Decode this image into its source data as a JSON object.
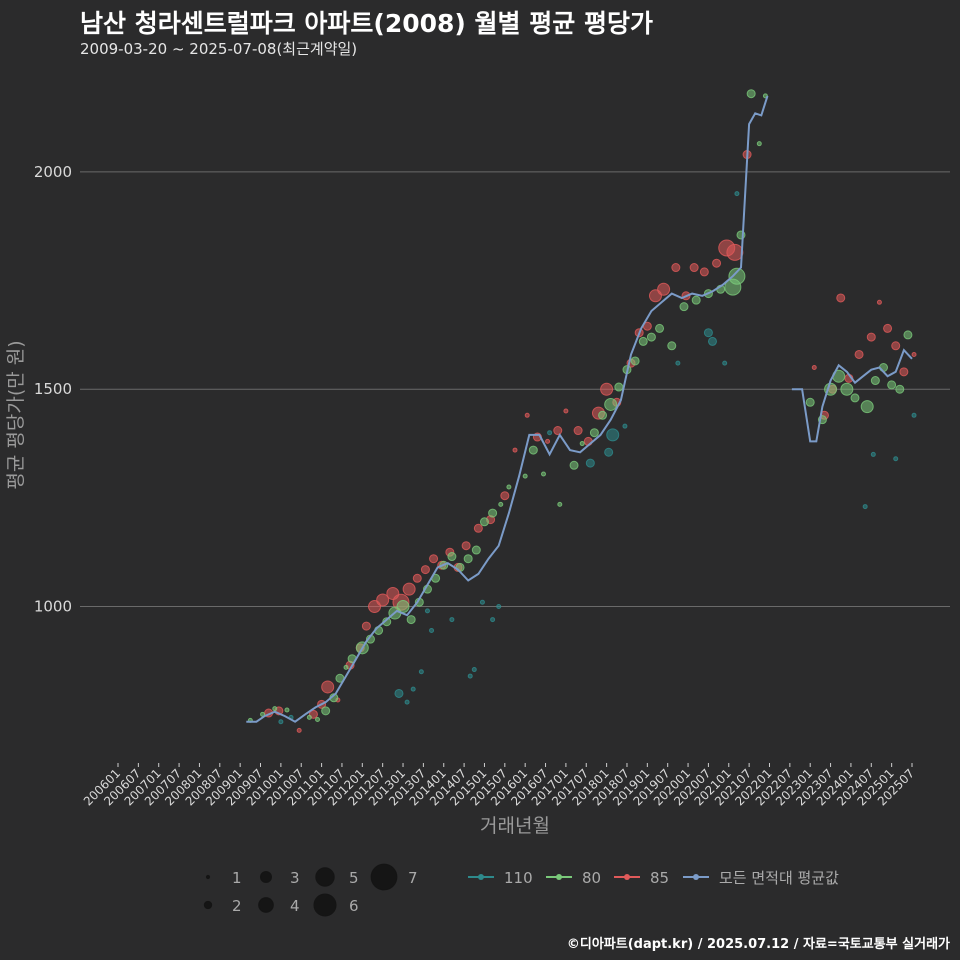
{
  "chart_data": {
    "type": "scatter",
    "title": "남산 청라센트럴파크 아파트(2008) 월별 평균 평당가",
    "subtitle": "2009-03-20 ~ 2025-07-08(최근계약일)",
    "xlabel": "거래년월",
    "ylabel": "평균 평당가(만 원)",
    "footer": "©디아파트(dapt.kr) / 2025.07.12 / 자료=국토교통부 실거래가",
    "x_start": "2006-01",
    "x_end": "2025-07",
    "ylim": [
      640,
      2200
    ],
    "yticks": [
      1000,
      1500,
      2000
    ],
    "xticks": [
      "200601",
      "200607",
      "200701",
      "200707",
      "200801",
      "200807",
      "200901",
      "200907",
      "201001",
      "201007",
      "201101",
      "201107",
      "201201",
      "201207",
      "201301",
      "201307",
      "201401",
      "201407",
      "201501",
      "201507",
      "201601",
      "201607",
      "201701",
      "201707",
      "201801",
      "201807",
      "201901",
      "201907",
      "202001",
      "202007",
      "202101",
      "202107",
      "202201",
      "202207",
      "202301",
      "202307",
      "202401",
      "202407",
      "202501",
      "202507"
    ],
    "size_legend": {
      "labels": [
        "1",
        "2",
        "3",
        "4",
        "5",
        "6",
        "7"
      ]
    },
    "series": [
      {
        "name": "110",
        "color": "#2e8a8c",
        "points": [
          [
            2010.0,
            735,
            1
          ],
          [
            2010.25,
            745,
            1
          ],
          [
            2012.9,
            800,
            2
          ],
          [
            2013.1,
            780,
            1
          ],
          [
            2013.25,
            810,
            1
          ],
          [
            2013.45,
            850,
            1
          ],
          [
            2013.6,
            990,
            1
          ],
          [
            2013.7,
            945,
            1
          ],
          [
            2014.2,
            970,
            1
          ],
          [
            2014.65,
            840,
            1
          ],
          [
            2014.75,
            855,
            1
          ],
          [
            2014.95,
            1010,
            1
          ],
          [
            2015.2,
            970,
            1
          ],
          [
            2015.35,
            1000,
            1
          ],
          [
            2016.6,
            1400,
            1
          ],
          [
            2017.6,
            1330,
            2
          ],
          [
            2018.05,
            1355,
            2
          ],
          [
            2018.15,
            1395,
            3
          ],
          [
            2018.45,
            1415,
            1
          ],
          [
            2019.75,
            1560,
            1
          ],
          [
            2020.5,
            1630,
            2
          ],
          [
            2020.6,
            1610,
            2
          ],
          [
            2020.9,
            1560,
            1
          ],
          [
            2021.2,
            1950,
            1
          ],
          [
            2024.35,
            1230,
            1
          ],
          [
            2024.55,
            1350,
            1
          ],
          [
            2025.1,
            1340,
            1
          ],
          [
            2025.55,
            1440,
            1
          ]
        ]
      },
      {
        "name": "80",
        "color": "#7ac97a",
        "points": [
          [
            2009.25,
            738,
            1
          ],
          [
            2009.55,
            752,
            1
          ],
          [
            2009.85,
            765,
            1
          ],
          [
            2010.15,
            762,
            1
          ],
          [
            2010.7,
            745,
            1
          ],
          [
            2010.9,
            740,
            1
          ],
          [
            2011.1,
            760,
            2
          ],
          [
            2011.3,
            790,
            2
          ],
          [
            2011.45,
            835,
            2
          ],
          [
            2011.6,
            860,
            1
          ],
          [
            2011.75,
            880,
            2
          ],
          [
            2012.0,
            905,
            3
          ],
          [
            2012.2,
            925,
            2
          ],
          [
            2012.4,
            945,
            2
          ],
          [
            2012.6,
            965,
            2
          ],
          [
            2012.8,
            985,
            3
          ],
          [
            2013.0,
            1000,
            3
          ],
          [
            2013.2,
            970,
            2
          ],
          [
            2013.4,
            1010,
            2
          ],
          [
            2013.6,
            1040,
            2
          ],
          [
            2013.8,
            1065,
            2
          ],
          [
            2014.0,
            1095,
            2
          ],
          [
            2014.2,
            1115,
            2
          ],
          [
            2014.4,
            1090,
            2
          ],
          [
            2014.6,
            1110,
            2
          ],
          [
            2014.8,
            1130,
            2
          ],
          [
            2015.0,
            1195,
            2
          ],
          [
            2015.2,
            1215,
            2
          ],
          [
            2015.4,
            1235,
            1
          ],
          [
            2015.6,
            1275,
            1
          ],
          [
            2016.0,
            1300,
            1
          ],
          [
            2016.2,
            1360,
            2
          ],
          [
            2016.45,
            1305,
            1
          ],
          [
            2016.85,
            1235,
            1
          ],
          [
            2017.2,
            1325,
            2
          ],
          [
            2017.4,
            1375,
            1
          ],
          [
            2017.7,
            1400,
            2
          ],
          [
            2017.9,
            1440,
            2
          ],
          [
            2018.1,
            1465,
            3
          ],
          [
            2018.3,
            1505,
            2
          ],
          [
            2018.5,
            1545,
            2
          ],
          [
            2018.7,
            1565,
            2
          ],
          [
            2018.9,
            1610,
            2
          ],
          [
            2019.1,
            1620,
            2
          ],
          [
            2019.3,
            1640,
            2
          ],
          [
            2019.6,
            1600,
            2
          ],
          [
            2019.9,
            1690,
            2
          ],
          [
            2020.2,
            1705,
            2
          ],
          [
            2020.5,
            1720,
            2
          ],
          [
            2020.8,
            1730,
            2
          ],
          [
            2021.1,
            1735,
            4
          ],
          [
            2021.2,
            1760,
            4
          ],
          [
            2021.3,
            1855,
            2
          ],
          [
            2021.55,
            2180,
            2
          ],
          [
            2021.75,
            2065,
            1
          ],
          [
            2021.9,
            2175,
            1
          ],
          [
            2023.0,
            1470,
            2
          ],
          [
            2023.3,
            1430,
            2
          ],
          [
            2023.5,
            1500,
            3
          ],
          [
            2023.7,
            1530,
            3
          ],
          [
            2023.9,
            1500,
            3
          ],
          [
            2024.1,
            1480,
            2
          ],
          [
            2024.4,
            1460,
            3
          ],
          [
            2024.6,
            1520,
            2
          ],
          [
            2024.8,
            1550,
            2
          ],
          [
            2025.0,
            1510,
            2
          ],
          [
            2025.2,
            1500,
            2
          ],
          [
            2025.4,
            1625,
            2
          ]
        ]
      },
      {
        "name": "85",
        "color": "#e05a5a",
        "points": [
          [
            2009.7,
            755,
            2
          ],
          [
            2009.95,
            760,
            2
          ],
          [
            2010.45,
            715,
            1
          ],
          [
            2010.8,
            752,
            2
          ],
          [
            2011.0,
            775,
            2
          ],
          [
            2011.15,
            815,
            3
          ],
          [
            2011.4,
            785,
            1
          ],
          [
            2011.7,
            865,
            2
          ],
          [
            2011.95,
            905,
            2
          ],
          [
            2012.1,
            955,
            2
          ],
          [
            2012.3,
            1000,
            3
          ],
          [
            2012.5,
            1015,
            3
          ],
          [
            2012.75,
            1030,
            3
          ],
          [
            2012.95,
            1010,
            4
          ],
          [
            2013.15,
            1040,
            3
          ],
          [
            2013.35,
            1065,
            2
          ],
          [
            2013.55,
            1085,
            2
          ],
          [
            2013.75,
            1110,
            2
          ],
          [
            2013.95,
            1095,
            2
          ],
          [
            2014.15,
            1125,
            2
          ],
          [
            2014.35,
            1090,
            2
          ],
          [
            2014.55,
            1140,
            2
          ],
          [
            2014.85,
            1180,
            2
          ],
          [
            2015.15,
            1200,
            2
          ],
          [
            2015.5,
            1255,
            2
          ],
          [
            2015.75,
            1360,
            1
          ],
          [
            2016.05,
            1440,
            1
          ],
          [
            2016.3,
            1390,
            2
          ],
          [
            2016.55,
            1380,
            1
          ],
          [
            2016.8,
            1405,
            2
          ],
          [
            2017.0,
            1450,
            1
          ],
          [
            2017.3,
            1405,
            2
          ],
          [
            2017.55,
            1380,
            2
          ],
          [
            2017.8,
            1445,
            3
          ],
          [
            2018.0,
            1500,
            3
          ],
          [
            2018.25,
            1470,
            2
          ],
          [
            2018.6,
            1560,
            2
          ],
          [
            2018.8,
            1630,
            2
          ],
          [
            2019.0,
            1645,
            2
          ],
          [
            2019.2,
            1715,
            3
          ],
          [
            2019.4,
            1730,
            3
          ],
          [
            2019.7,
            1780,
            2
          ],
          [
            2019.95,
            1715,
            2
          ],
          [
            2020.15,
            1780,
            2
          ],
          [
            2020.4,
            1770,
            2
          ],
          [
            2020.7,
            1790,
            2
          ],
          [
            2020.95,
            1825,
            4
          ],
          [
            2021.15,
            1815,
            4
          ],
          [
            2021.45,
            2040,
            2
          ],
          [
            2023.1,
            1550,
            1
          ],
          [
            2023.35,
            1440,
            2
          ],
          [
            2023.55,
            1500,
            2
          ],
          [
            2023.75,
            1710,
            2
          ],
          [
            2023.95,
            1525,
            2
          ],
          [
            2024.2,
            1580,
            2
          ],
          [
            2024.5,
            1620,
            2
          ],
          [
            2024.7,
            1700,
            1
          ],
          [
            2024.9,
            1640,
            2
          ],
          [
            2025.1,
            1600,
            2
          ],
          [
            2025.3,
            1540,
            2
          ],
          [
            2025.55,
            1580,
            1
          ]
        ]
      }
    ],
    "average_line": {
      "name": "모든 면적대 평균값",
      "color": "#7b9bc8",
      "segments": [
        [
          [
            2009.15,
            735
          ],
          [
            2009.4,
            735
          ],
          [
            2009.6,
            748
          ],
          [
            2009.85,
            758
          ],
          [
            2010.1,
            748
          ],
          [
            2010.35,
            735
          ],
          [
            2010.6,
            752
          ],
          [
            2010.85,
            768
          ],
          [
            2011.1,
            780
          ],
          [
            2011.35,
            800
          ],
          [
            2011.6,
            840
          ],
          [
            2011.85,
            880
          ],
          [
            2012.1,
            920
          ],
          [
            2012.35,
            950
          ],
          [
            2012.6,
            970
          ],
          [
            2012.85,
            990
          ],
          [
            2013.1,
            980
          ],
          [
            2013.35,
            1010
          ],
          [
            2013.6,
            1050
          ],
          [
            2013.85,
            1090
          ],
          [
            2014.1,
            1100
          ],
          [
            2014.35,
            1085
          ],
          [
            2014.6,
            1060
          ],
          [
            2014.85,
            1075
          ],
          [
            2015.1,
            1110
          ],
          [
            2015.35,
            1140
          ],
          [
            2015.6,
            1215
          ],
          [
            2015.85,
            1300
          ],
          [
            2016.1,
            1395
          ],
          [
            2016.35,
            1395
          ],
          [
            2016.6,
            1350
          ],
          [
            2016.85,
            1395
          ],
          [
            2017.1,
            1360
          ],
          [
            2017.35,
            1355
          ],
          [
            2017.6,
            1375
          ],
          [
            2017.85,
            1395
          ],
          [
            2018.1,
            1430
          ],
          [
            2018.35,
            1475
          ],
          [
            2018.6,
            1580
          ],
          [
            2018.85,
            1640
          ],
          [
            2019.1,
            1680
          ],
          [
            2019.35,
            1700
          ],
          [
            2019.6,
            1720
          ],
          [
            2019.85,
            1710
          ],
          [
            2020.1,
            1720
          ],
          [
            2020.35,
            1715
          ],
          [
            2020.6,
            1725
          ],
          [
            2020.85,
            1740
          ],
          [
            2021.1,
            1760
          ],
          [
            2021.3,
            1780
          ],
          [
            2021.5,
            2110
          ],
          [
            2021.65,
            2135
          ],
          [
            2021.8,
            2130
          ],
          [
            2021.95,
            2175
          ]
        ],
        [
          [
            2022.55,
            1500
          ],
          [
            2022.8,
            1500
          ],
          [
            2023.0,
            1380
          ],
          [
            2023.15,
            1380
          ],
          [
            2023.3,
            1460
          ],
          [
            2023.5,
            1520
          ],
          [
            2023.7,
            1555
          ],
          [
            2023.9,
            1540
          ],
          [
            2024.1,
            1515
          ],
          [
            2024.3,
            1530
          ],
          [
            2024.5,
            1545
          ],
          [
            2024.7,
            1550
          ],
          [
            2024.9,
            1530
          ],
          [
            2025.1,
            1540
          ],
          [
            2025.3,
            1590
          ],
          [
            2025.5,
            1570
          ]
        ]
      ]
    }
  }
}
